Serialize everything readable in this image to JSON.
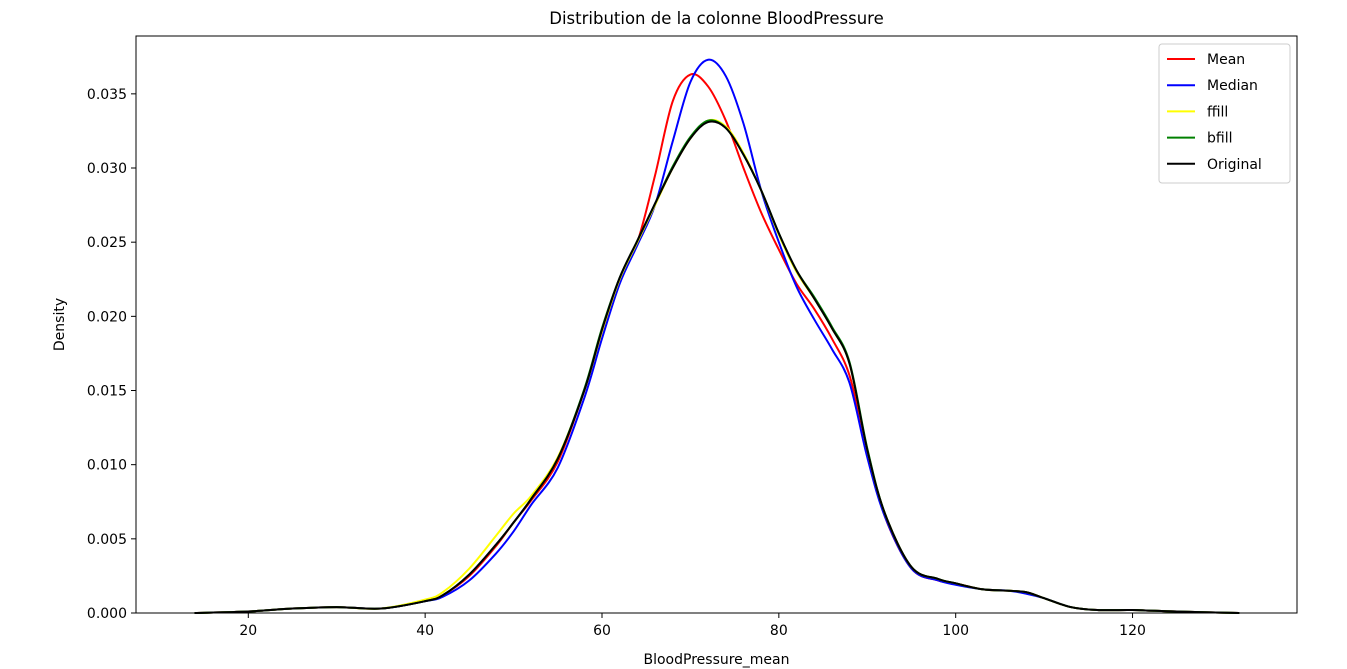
{
  "chart_data": {
    "type": "line",
    "title": "Distribution de la colonne BloodPressure",
    "xlabel": "BloodPressure_mean",
    "ylabel": "Density",
    "xlim": [
      7.3,
      138.6
    ],
    "ylim": [
      0,
      0.0389
    ],
    "xticks": [
      20,
      40,
      60,
      80,
      100,
      120
    ],
    "yticks": [
      0.0,
      0.005,
      0.01,
      0.015,
      0.02,
      0.025,
      0.03,
      0.035
    ],
    "ytick_labels": [
      "0.000",
      "0.005",
      "0.010",
      "0.015",
      "0.020",
      "0.025",
      "0.030",
      "0.035"
    ],
    "grid": false,
    "legend_position": "top-right",
    "x": [
      14,
      20,
      25,
      30,
      35,
      40,
      42,
      45,
      48,
      50,
      52,
      55,
      58,
      60,
      62,
      64,
      66,
      68,
      70,
      72,
      74,
      76,
      78,
      80,
      82,
      84,
      86,
      88,
      90,
      92,
      95,
      98,
      100,
      103,
      106,
      108,
      110,
      113,
      116,
      120,
      125,
      132
    ],
    "series": [
      {
        "name": "Mean",
        "color": "#ff0000",
        "values": [
          0.0,
          0.0001,
          0.0003,
          0.0004,
          0.0003,
          0.0008,
          0.0012,
          0.0025,
          0.0045,
          0.0061,
          0.0076,
          0.0102,
          0.015,
          0.019,
          0.0225,
          0.025,
          0.0295,
          0.0345,
          0.0363,
          0.0355,
          0.0332,
          0.03,
          0.027,
          0.0245,
          0.0222,
          0.0205,
          0.0185,
          0.016,
          0.011,
          0.0065,
          0.003,
          0.0022,
          0.002,
          0.0016,
          0.0015,
          0.0014,
          0.001,
          0.0004,
          0.0002,
          0.0002,
          0.0001,
          0.0
        ]
      },
      {
        "name": "Median",
        "color": "#0000ff",
        "values": [
          0.0,
          0.0001,
          0.0003,
          0.0004,
          0.0003,
          0.0008,
          0.0011,
          0.0022,
          0.004,
          0.0055,
          0.0073,
          0.0098,
          0.0145,
          0.0185,
          0.0222,
          0.0248,
          0.0275,
          0.0318,
          0.0358,
          0.0373,
          0.0362,
          0.033,
          0.0285,
          0.025,
          0.022,
          0.0198,
          0.0178,
          0.0155,
          0.0105,
          0.0065,
          0.003,
          0.0022,
          0.0019,
          0.0016,
          0.0015,
          0.0013,
          0.001,
          0.0004,
          0.0002,
          0.0002,
          0.0001,
          0.0
        ]
      },
      {
        "name": "ffill",
        "color": "#ffff00",
        "values": [
          0.0,
          0.0001,
          0.0003,
          0.0004,
          0.0003,
          0.0009,
          0.0014,
          0.003,
          0.0052,
          0.0067,
          0.0079,
          0.0105,
          0.015,
          0.019,
          0.0225,
          0.025,
          0.0275,
          0.03,
          0.032,
          0.0332,
          0.0328,
          0.031,
          0.0285,
          0.0255,
          0.023,
          0.0212,
          0.0192,
          0.0168,
          0.011,
          0.0067,
          0.0031,
          0.0023,
          0.002,
          0.0016,
          0.0015,
          0.0014,
          0.001,
          0.0004,
          0.0002,
          0.0002,
          0.0001,
          0.0
        ]
      },
      {
        "name": "bfill",
        "color": "#008000",
        "values": [
          0.0,
          0.0001,
          0.0003,
          0.0004,
          0.0003,
          0.0008,
          0.0012,
          0.0026,
          0.0046,
          0.0061,
          0.0077,
          0.0104,
          0.0151,
          0.0192,
          0.0226,
          0.0251,
          0.0276,
          0.0301,
          0.0321,
          0.0332,
          0.0327,
          0.0309,
          0.0285,
          0.0256,
          0.0231,
          0.0213,
          0.0193,
          0.0169,
          0.0111,
          0.0067,
          0.0031,
          0.0023,
          0.002,
          0.0016,
          0.0015,
          0.0014,
          0.001,
          0.0004,
          0.0002,
          0.0002,
          0.0001,
          0.0
        ]
      },
      {
        "name": "Original",
        "color": "#000000",
        "values": [
          0.0,
          0.0001,
          0.0003,
          0.0004,
          0.0003,
          0.0008,
          0.0012,
          0.0026,
          0.0046,
          0.0061,
          0.0077,
          0.0104,
          0.015,
          0.0191,
          0.0226,
          0.0251,
          0.0276,
          0.03,
          0.032,
          0.0331,
          0.0327,
          0.0309,
          0.0285,
          0.0256,
          0.0231,
          0.0212,
          0.0192,
          0.0168,
          0.011,
          0.0067,
          0.0031,
          0.0023,
          0.002,
          0.0016,
          0.0015,
          0.0014,
          0.001,
          0.0004,
          0.0002,
          0.0002,
          0.0001,
          0.0
        ]
      }
    ]
  }
}
